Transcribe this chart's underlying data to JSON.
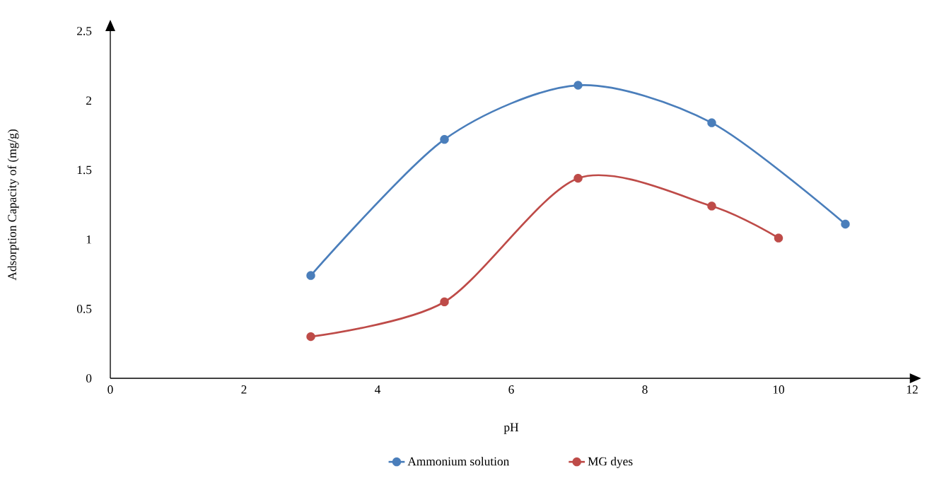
{
  "chart_data": {
    "type": "line",
    "xlabel": "pH",
    "ylabel": "Adsorption Capacity of (mg/g)",
    "xlim": [
      0,
      12
    ],
    "xticks": [
      0,
      2,
      4,
      6,
      8,
      10,
      12
    ],
    "ylim": [
      0,
      2.5
    ],
    "yticks": [
      0,
      0.5,
      1,
      1.5,
      2,
      2.5
    ],
    "legend": "bottom",
    "marker": "circle",
    "series": [
      {
        "name": "Ammonium solution",
        "color": "#4a7ebb",
        "x": [
          3,
          5,
          7,
          9,
          11
        ],
        "values": [
          0.74,
          1.72,
          2.11,
          1.84,
          1.11
        ]
      },
      {
        "name": "MG dyes",
        "color": "#be4b48",
        "x": [
          3,
          5,
          7,
          9,
          10
        ],
        "values": [
          0.3,
          0.55,
          1.44,
          1.24,
          1.01
        ]
      }
    ]
  }
}
